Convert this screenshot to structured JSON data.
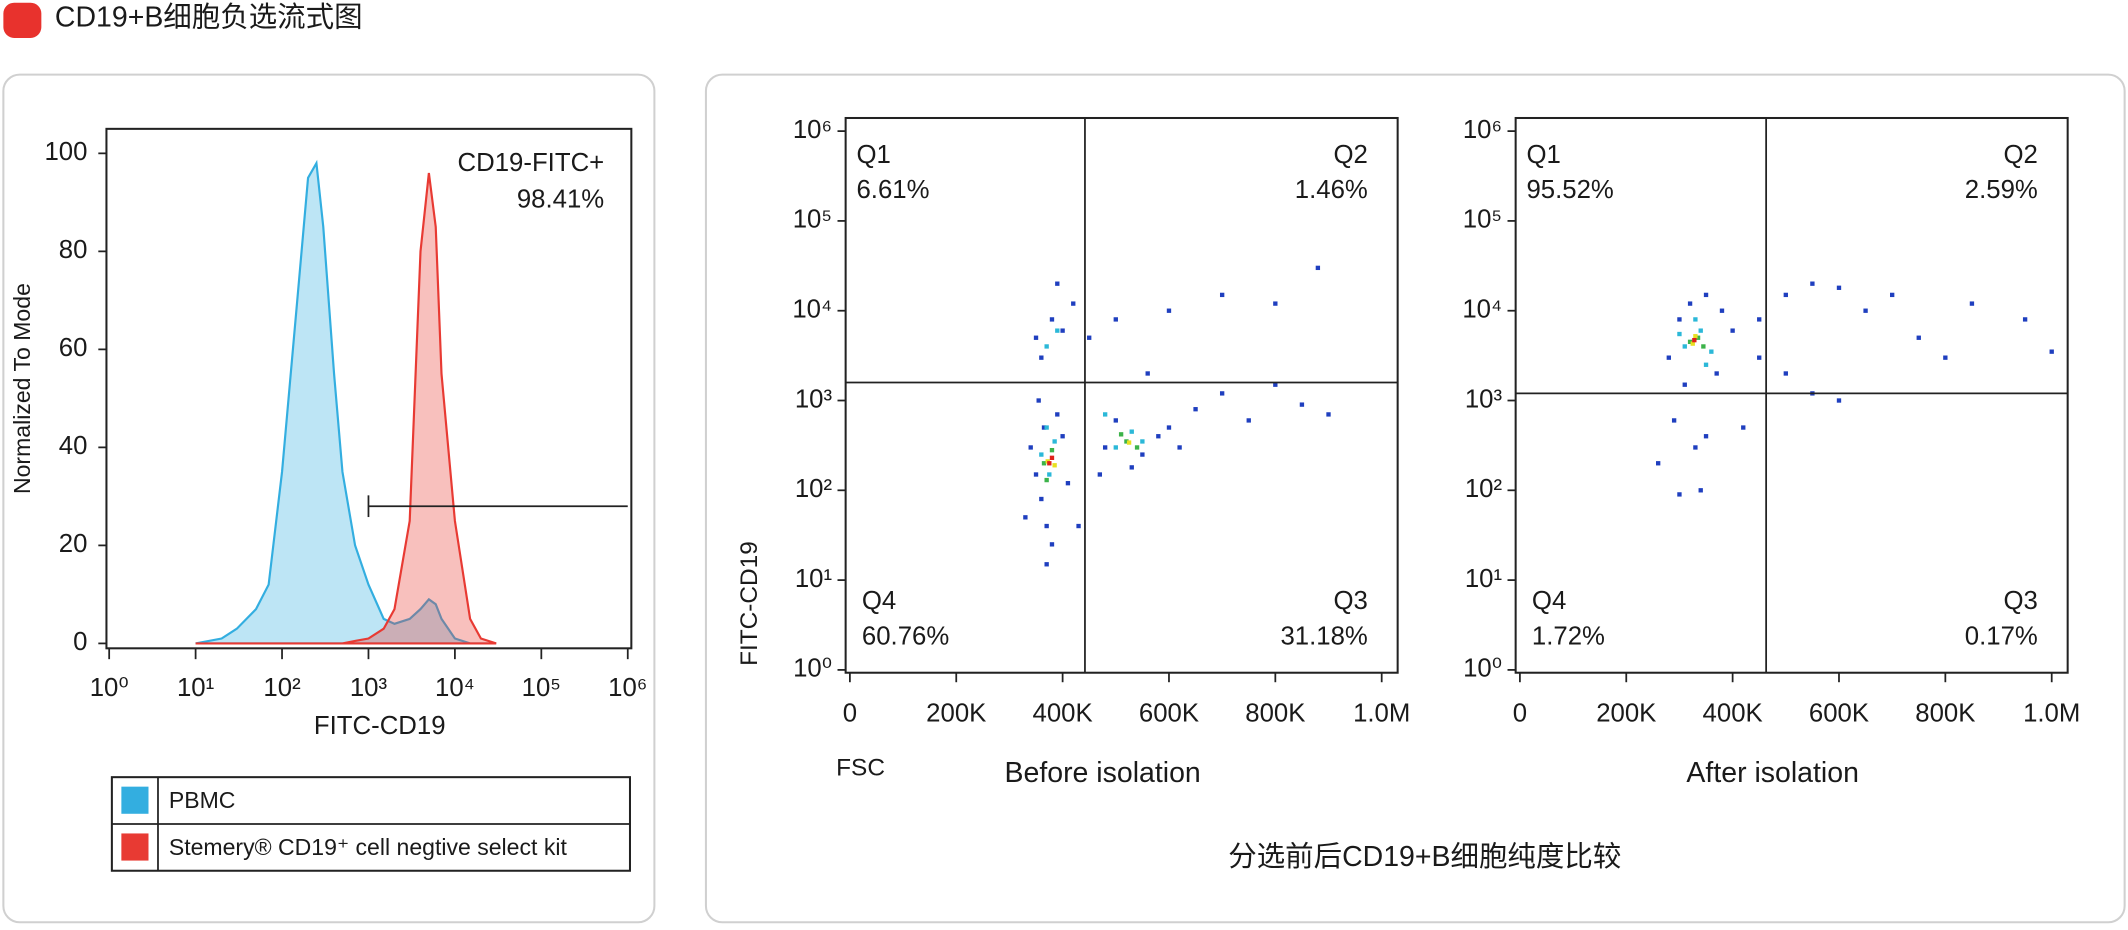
{
  "header": {
    "title": "CD19+B细胞负选流式图"
  },
  "caption": "分选前后CD19+B细胞纯度比较",
  "chart_data": [
    {
      "type": "area",
      "xlabel": "FITC-CD19",
      "ylabel": "Normalized To Mode",
      "log_x": true,
      "legend": "bottom",
      "xlim": [
        0.93,
        1100000
      ],
      "ylim": [
        -1,
        105
      ],
      "xticks": [
        {
          "value": 1,
          "label": "10⁰"
        },
        {
          "value": 10,
          "label": "10¹"
        },
        {
          "value": 100,
          "label": "10²"
        },
        {
          "value": 1000,
          "label": "10³"
        },
        {
          "value": 10000,
          "label": "10⁴"
        },
        {
          "value": 100000,
          "label": "10⁵"
        },
        {
          "value": 1000000,
          "label": "10⁶"
        }
      ],
      "yticks": [
        0,
        20,
        40,
        60,
        80,
        100
      ],
      "x": [
        10,
        20,
        30,
        50,
        70,
        100,
        150,
        200,
        250,
        300,
        400,
        500,
        700,
        1000,
        1500,
        2000,
        3000,
        4000,
        5000,
        6000,
        7000,
        10000,
        15000,
        20000,
        30000
      ],
      "series": [
        {
          "name": "PBMC",
          "color": "#33aee0",
          "values": [
            0,
            1,
            3,
            7,
            12,
            35,
            70,
            95,
            98,
            85,
            55,
            35,
            20,
            12,
            5,
            4,
            5,
            7,
            9,
            8,
            5,
            1,
            0,
            0,
            0
          ]
        },
        {
          "name": "Stemery® CD19⁺ cell negtive select kit",
          "color": "#e83a33",
          "values": [
            0,
            0,
            0,
            0,
            0,
            0,
            0,
            0,
            0,
            0,
            0,
            0,
            0.5,
            1,
            3,
            7,
            25,
            80,
            96,
            85,
            55,
            25,
            5,
            1,
            0
          ]
        }
      ],
      "gate": {
        "xstart": 1000,
        "xend": 1000000,
        "y": 28
      },
      "annotation": {
        "text": "CD19-FITC+",
        "value": 98.41,
        "value_label": "98.41%"
      }
    },
    {
      "type": "scatter",
      "subtitle": "Before isolation",
      "xlabel": "FSC",
      "ylabel": "FITC-CD19",
      "log_y": true,
      "xlim": [
        -8000,
        1030000
      ],
      "ylim": [
        0.93,
        1400000
      ],
      "xticks": [
        0,
        {
          "value": 200000,
          "label": "200K"
        },
        {
          "value": 400000,
          "label": "400K"
        },
        {
          "value": 600000,
          "label": "600K"
        },
        {
          "value": 800000,
          "label": "800K"
        },
        {
          "value": 1000000,
          "label": "1.0M"
        }
      ],
      "yticks": [
        {
          "value": 1,
          "label": "10⁰"
        },
        {
          "value": 10,
          "label": "10¹"
        },
        {
          "value": 100,
          "label": "10²"
        },
        {
          "value": 1000,
          "label": "10³"
        },
        {
          "value": 10000,
          "label": "10⁴"
        },
        {
          "value": 100000,
          "label": "10⁵"
        },
        {
          "value": 1000000,
          "label": "10⁶"
        }
      ],
      "xgate": 442000,
      "ygate": 1585,
      "quadrant_labels": [
        "Q1",
        "Q2",
        "Q3",
        "Q4"
      ],
      "values": [
        6.61,
        1.46,
        31.18,
        60.76
      ],
      "value_labels": [
        "6.61%",
        "1.46%",
        "31.18%",
        "60.76%"
      ],
      "groups": [
        {
          "color": "#1f3fbf",
          "x": [
            350000,
            360000,
            370000,
            380000,
            365000,
            390000,
            340000,
            355000,
            400000,
            410000,
            360000,
            380000,
            350000,
            400000,
            420000,
            390000,
            480000,
            500000,
            550000,
            600000,
            650000,
            700000,
            750000,
            800000,
            850000,
            900000,
            560000,
            600000,
            700000,
            800000,
            880000,
            470000,
            530000,
            580000,
            620000,
            450000,
            500000,
            430000,
            330000,
            370000
          ],
          "y": [
            150,
            80,
            40,
            25,
            500,
            700,
            300,
            1000,
            400,
            120,
            3000,
            8000,
            5000,
            6000,
            12000,
            20000,
            300,
            600,
            250,
            500,
            800,
            1200,
            600,
            1500,
            900,
            700,
            2000,
            10000,
            15000,
            12000,
            30000,
            150,
            180,
            400,
            300,
            5000,
            8000,
            40,
            50,
            15
          ]
        },
        {
          "color": "#2bb8d8",
          "x": [
            360000,
            375000,
            385000,
            370000,
            500000,
            530000,
            550000,
            370000,
            390000,
            480000
          ],
          "y": [
            250,
            150,
            350,
            500,
            300,
            450,
            350,
            4000,
            6000,
            700
          ]
        },
        {
          "color": "#3cb34a",
          "x": [
            365000,
            380000,
            370000,
            520000,
            540000,
            510000
          ],
          "y": [
            200,
            280,
            130,
            350,
            300,
            420
          ]
        },
        {
          "color": "#e8e020",
          "x": [
            372000,
            385000,
            525000
          ],
          "y": [
            210,
            190,
            340
          ]
        },
        {
          "color": "#e0201a",
          "x": [
            375000,
            380000
          ],
          "y": [
            200,
            230
          ]
        }
      ]
    },
    {
      "type": "scatter",
      "subtitle": "After isolation",
      "log_y": true,
      "xlim": [
        -8000,
        1030000
      ],
      "ylim": [
        0.93,
        1400000
      ],
      "xticks": [
        0,
        {
          "value": 200000,
          "label": "200K"
        },
        {
          "value": 400000,
          "label": "400K"
        },
        {
          "value": 600000,
          "label": "600K"
        },
        {
          "value": 800000,
          "label": "800K"
        },
        {
          "value": 1000000,
          "label": "1.0M"
        }
      ],
      "yticks": [
        {
          "value": 1,
          "label": "10⁰"
        },
        {
          "value": 10,
          "label": "10¹"
        },
        {
          "value": 100,
          "label": "10²"
        },
        {
          "value": 1000,
          "label": "10³"
        },
        {
          "value": 10000,
          "label": "10⁴"
        },
        {
          "value": 100000,
          "label": "10⁵"
        },
        {
          "value": 1000000,
          "label": "10⁶"
        }
      ],
      "xgate": 463000,
      "ygate": 1200,
      "quadrant_labels": [
        "Q1",
        "Q2",
        "Q3",
        "Q4"
      ],
      "values": [
        95.52,
        2.59,
        0.17,
        1.72
      ],
      "value_labels": [
        "95.52%",
        "2.59%",
        "0.17%",
        "1.72%"
      ],
      "groups": [
        {
          "color": "#1f3fbf",
          "x": [
            280000,
            300000,
            320000,
            350000,
            370000,
            310000,
            290000,
            330000,
            340000,
            260000,
            380000,
            400000,
            450000,
            500000,
            550000,
            600000,
            650000,
            700000,
            750000,
            800000,
            850000,
            950000,
            1000000,
            500000,
            550000,
            600000,
            420000,
            450000,
            350000,
            300000
          ],
          "y": [
            3000,
            8000,
            12000,
            15000,
            2000,
            1500,
            600,
            300,
            100,
            200,
            10000,
            6000,
            8000,
            15000,
            20000,
            18000,
            10000,
            15000,
            5000,
            3000,
            12000,
            8000,
            3500,
            2000,
            1200,
            1000,
            500,
            3000,
            400,
            90
          ]
        },
        {
          "color": "#2bb8d8",
          "x": [
            310000,
            340000,
            360000,
            300000,
            350000,
            330000
          ],
          "y": [
            4000,
            6000,
            3500,
            5500,
            2500,
            8000
          ]
        },
        {
          "color": "#3cb34a",
          "x": [
            320000,
            335000,
            345000
          ],
          "y": [
            4500,
            5000,
            4000
          ]
        },
        {
          "color": "#e8e020",
          "x": [
            325000,
            330000
          ],
          "y": [
            4300,
            5200
          ]
        },
        {
          "color": "#e0201a",
          "x": [
            328000
          ],
          "y": [
            4700
          ]
        }
      ]
    }
  ]
}
